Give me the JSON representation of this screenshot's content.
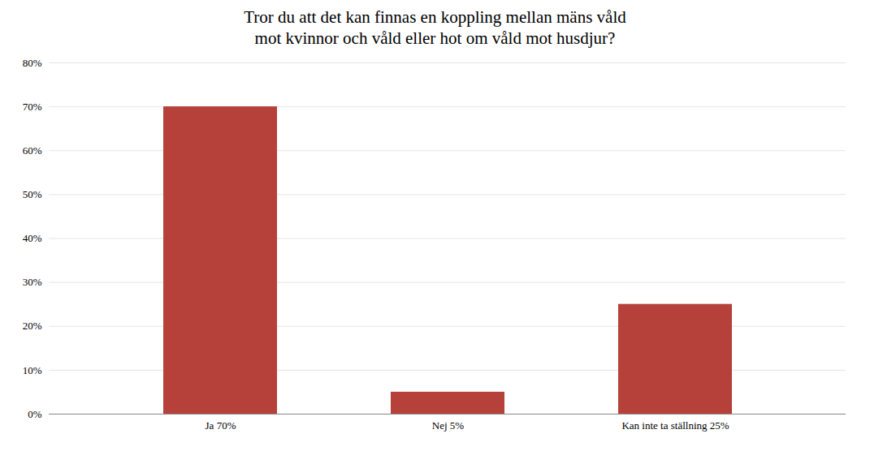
{
  "chart_data": {
    "type": "bar",
    "title": "Tror du att det kan finnas en koppling mellan mäns våld\nmot kvinnor och våld eller hot om våld mot husdjur?",
    "categories": [
      "Ja 70%",
      "Nej 5%",
      "Kan inte ta ställning 25%"
    ],
    "values": [
      70,
      5,
      25
    ],
    "color": "#b5413a",
    "ylim": [
      0,
      80
    ],
    "yticks": [
      {
        "value": 0,
        "label": "0%"
      },
      {
        "value": 10,
        "label": "10%"
      },
      {
        "value": 20,
        "label": "20%"
      },
      {
        "value": 30,
        "label": "30%"
      },
      {
        "value": 40,
        "label": "40%"
      },
      {
        "value": 50,
        "label": "50%"
      },
      {
        "value": 60,
        "label": "60%"
      },
      {
        "value": 70,
        "label": "70%"
      },
      {
        "value": 80,
        "label": "80%"
      }
    ],
    "grid": true
  }
}
